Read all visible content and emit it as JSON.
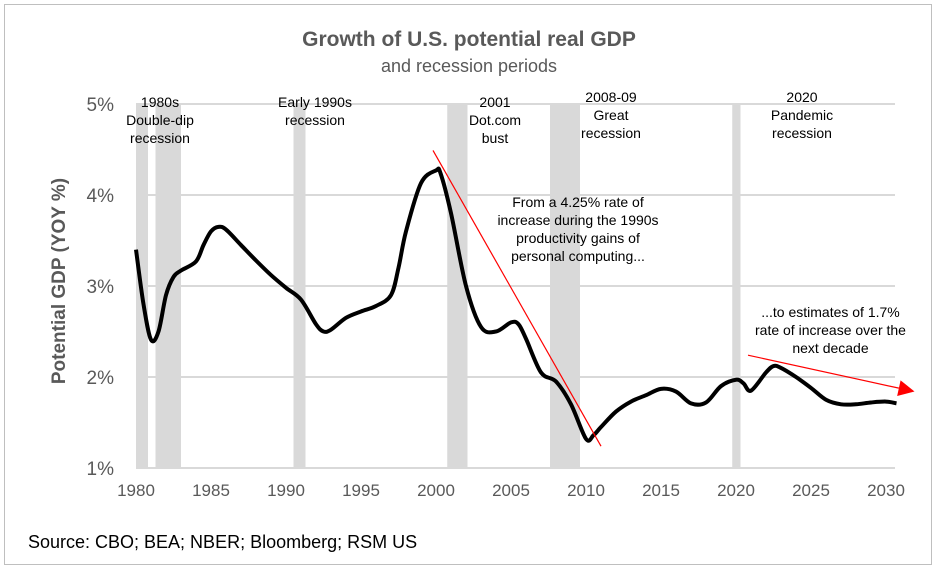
{
  "chart_data": {
    "type": "line",
    "title": "Growth of U.S. potential real GDP",
    "subtitle": "and recession periods",
    "xlabel": "",
    "ylabel": "Potential GDP (YOY %)",
    "xlim": [
      1980,
      2031
    ],
    "ylim": [
      1,
      5
    ],
    "x_ticks": [
      "1980",
      "1985",
      "1990",
      "1995",
      "2000",
      "2005",
      "2010",
      "2015",
      "2020",
      "2025",
      "2030"
    ],
    "y_ticks": [
      "1%",
      "2%",
      "3%",
      "4%",
      "5%"
    ],
    "grid": "horizontal",
    "colors": {
      "line": "#000000",
      "recession": "#d9d9d9",
      "annotation": "#ff0000",
      "grid": "#d9d9d9",
      "axis_text": "#595959"
    },
    "series": [
      {
        "x": [
          1980,
          1980.5,
          1981,
          1981.5,
          1982,
          1982.5,
          1983,
          1984,
          1984.5,
          1985,
          1985.5,
          1986,
          1987,
          1988,
          1989,
          1990,
          1991,
          1992,
          1992.5,
          1993,
          1994,
          1995,
          1996,
          1997,
          1997.5,
          1998,
          1999,
          2000,
          2000.3,
          2001,
          2002,
          2003,
          2004,
          2005,
          2005.5,
          2006,
          2007,
          2008,
          2009,
          2010,
          2010.5,
          2011,
          2012,
          2013,
          2014,
          2015,
          2016,
          2017,
          2018,
          2019,
          2020,
          2020.5,
          2021,
          2022,
          2022.5,
          2023,
          2024,
          2025,
          2026,
          2027,
          2028,
          2029,
          2030,
          2030.7
        ],
        "y": [
          3.4,
          2.8,
          2.41,
          2.5,
          2.9,
          3.1,
          3.17,
          3.27,
          3.45,
          3.6,
          3.65,
          3.62,
          3.45,
          3.28,
          3.12,
          2.98,
          2.85,
          2.58,
          2.5,
          2.52,
          2.65,
          2.72,
          2.78,
          2.9,
          3.2,
          3.6,
          4.13,
          4.27,
          4.24,
          3.8,
          3.0,
          2.55,
          2.5,
          2.6,
          2.58,
          2.42,
          2.05,
          1.95,
          1.7,
          1.32,
          1.36,
          1.45,
          1.62,
          1.73,
          1.8,
          1.87,
          1.84,
          1.71,
          1.72,
          1.9,
          1.97,
          1.93,
          1.85,
          2.05,
          2.12,
          2.1,
          2.0,
          1.88,
          1.75,
          1.7,
          1.7,
          1.72,
          1.73,
          1.71
        ]
      }
    ],
    "recessions": [
      {
        "start": 1980.0,
        "end": 1980.8
      },
      {
        "start": 1981.3,
        "end": 1983.0
      },
      {
        "start": 1990.5,
        "end": 1991.3
      },
      {
        "start": 2000.75,
        "end": 2002.1
      },
      {
        "start": 2007.6,
        "end": 2009.6
      },
      {
        "start": 2019.75,
        "end": 2020.3
      }
    ],
    "recession_labels": [
      "1980s\nDouble-dip\nrecession",
      "Early 1990s\nrecession",
      "2001\nDot.com\nbust",
      "2008-09\nGreat\nrecession",
      "2020\nPandemic\nrecession"
    ],
    "annotations": [
      {
        "text": "From a 4.25% rate of\nincrease during the 1990s\nproductivity gains of\npersonal computing...",
        "line": [
          [
            1999.8,
            4.49
          ],
          [
            2011.0,
            1.24
          ]
        ],
        "arrow": false
      },
      {
        "text": "...to estimates of 1.7%\nrate of increase over the\nnext decade",
        "line": [
          [
            2020.8,
            2.24
          ],
          [
            2031.9,
            1.84
          ]
        ],
        "arrow": true
      }
    ]
  },
  "source": "Source: CBO; BEA; NBER; Bloomberg; RSM US"
}
